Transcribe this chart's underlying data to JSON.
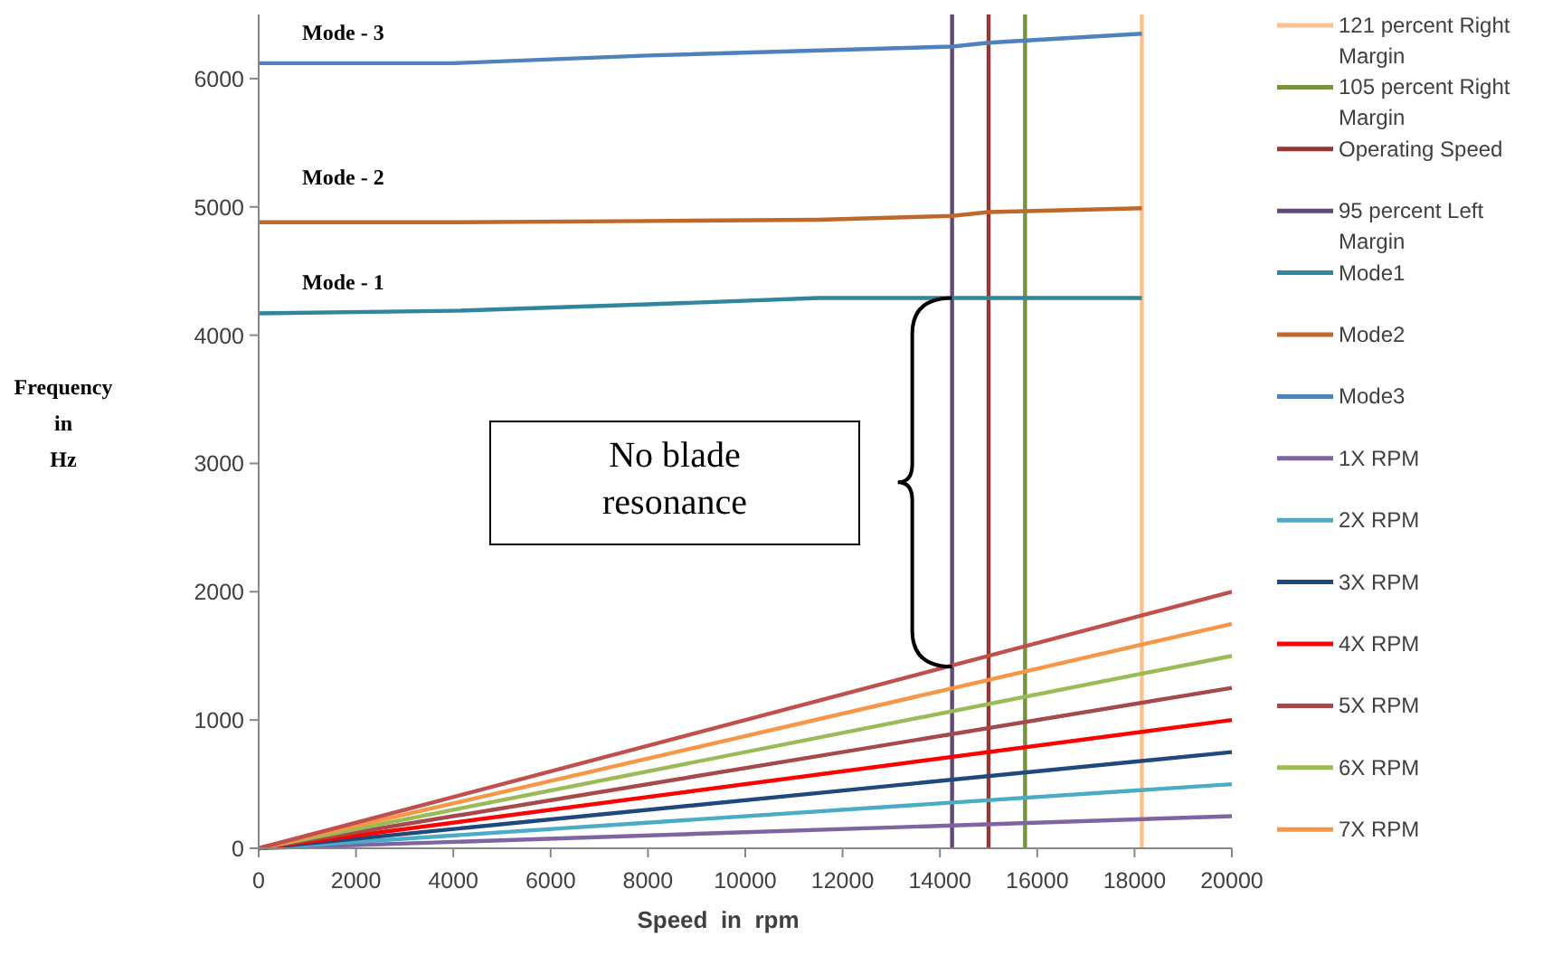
{
  "chart_data": {
    "type": "line",
    "xlabel": "Speed  in  rpm",
    "ylabel": "Frequency in Hz",
    "xlim": [
      0,
      20000
    ],
    "xticks": [
      0,
      2000,
      4000,
      6000,
      8000,
      10000,
      12000,
      14000,
      16000,
      18000,
      20000
    ],
    "ylim": [
      0,
      6500
    ],
    "yticks": [
      0,
      1000,
      2000,
      3000,
      4000,
      5000,
      6000
    ],
    "grid": false,
    "legend": "right",
    "line_style": "solid",
    "marker": "none",
    "series": [
      {
        "name": "121 percent Right Margin",
        "color": "#fac090",
        "x": [
          18150,
          18150
        ],
        "values": [
          0,
          6500
        ]
      },
      {
        "name": "105 percent Right Margin",
        "color": "#77933c",
        "x": [
          15750,
          15750
        ],
        "values": [
          0,
          6500
        ]
      },
      {
        "name": "Operating Speed",
        "color": "#953735",
        "x": [
          15000,
          15000
        ],
        "values": [
          0,
          6500
        ]
      },
      {
        "name": "95 percent Left Margin",
        "color": "#604a7b",
        "x": [
          14250,
          14250
        ],
        "values": [
          0,
          6500
        ]
      },
      {
        "name": "Mode1",
        "color": "#31859c",
        "x": [
          0,
          4000,
          8000,
          11500,
          14250,
          18150
        ],
        "values": [
          4170,
          4190,
          4240,
          4290,
          4290,
          4290
        ]
      },
      {
        "name": "Mode2",
        "color": "#c0682a",
        "x": [
          0,
          4000,
          8000,
          11500,
          14250,
          15000,
          18150
        ],
        "values": [
          4880,
          4880,
          4890,
          4900,
          4930,
          4960,
          4990
        ]
      },
      {
        "name": "Mode3",
        "color": "#4f81bd",
        "x": [
          0,
          4000,
          8000,
          14250,
          15000,
          18150
        ],
        "values": [
          6120,
          6120,
          6180,
          6250,
          6280,
          6350
        ]
      },
      {
        "name": "1X RPM",
        "color": "#8064a2",
        "x": [
          0,
          20000
        ],
        "values": [
          0,
          250
        ]
      },
      {
        "name": "2X RPM",
        "color": "#4bacc6",
        "x": [
          0,
          20000
        ],
        "values": [
          0,
          500
        ]
      },
      {
        "name": "3X RPM",
        "color": "#1f497d",
        "x": [
          0,
          20000
        ],
        "values": [
          0,
          750
        ]
      },
      {
        "name": "4X RPM",
        "color": "#ff0000",
        "x": [
          0,
          20000
        ],
        "values": [
          0,
          1000
        ]
      },
      {
        "name": "5X RPM",
        "color": "#a5494a",
        "x": [
          0,
          20000
        ],
        "values": [
          0,
          1250
        ]
      },
      {
        "name": "6X RPM",
        "color": "#9bbb59",
        "x": [
          0,
          20000
        ],
        "values": [
          0,
          1500
        ]
      },
      {
        "name": "7X RPM",
        "color": "#f79646",
        "x": [
          0,
          20000
        ],
        "values": [
          0,
          1750
        ]
      },
      {
        "color": "#c0504d",
        "x": [
          0,
          20000
        ],
        "values": [
          0,
          2000
        ]
      }
    ],
    "annotations": [
      "Mode - 3",
      "Mode - 2",
      "Mode - 1",
      "No blade resonance"
    ]
  }
}
